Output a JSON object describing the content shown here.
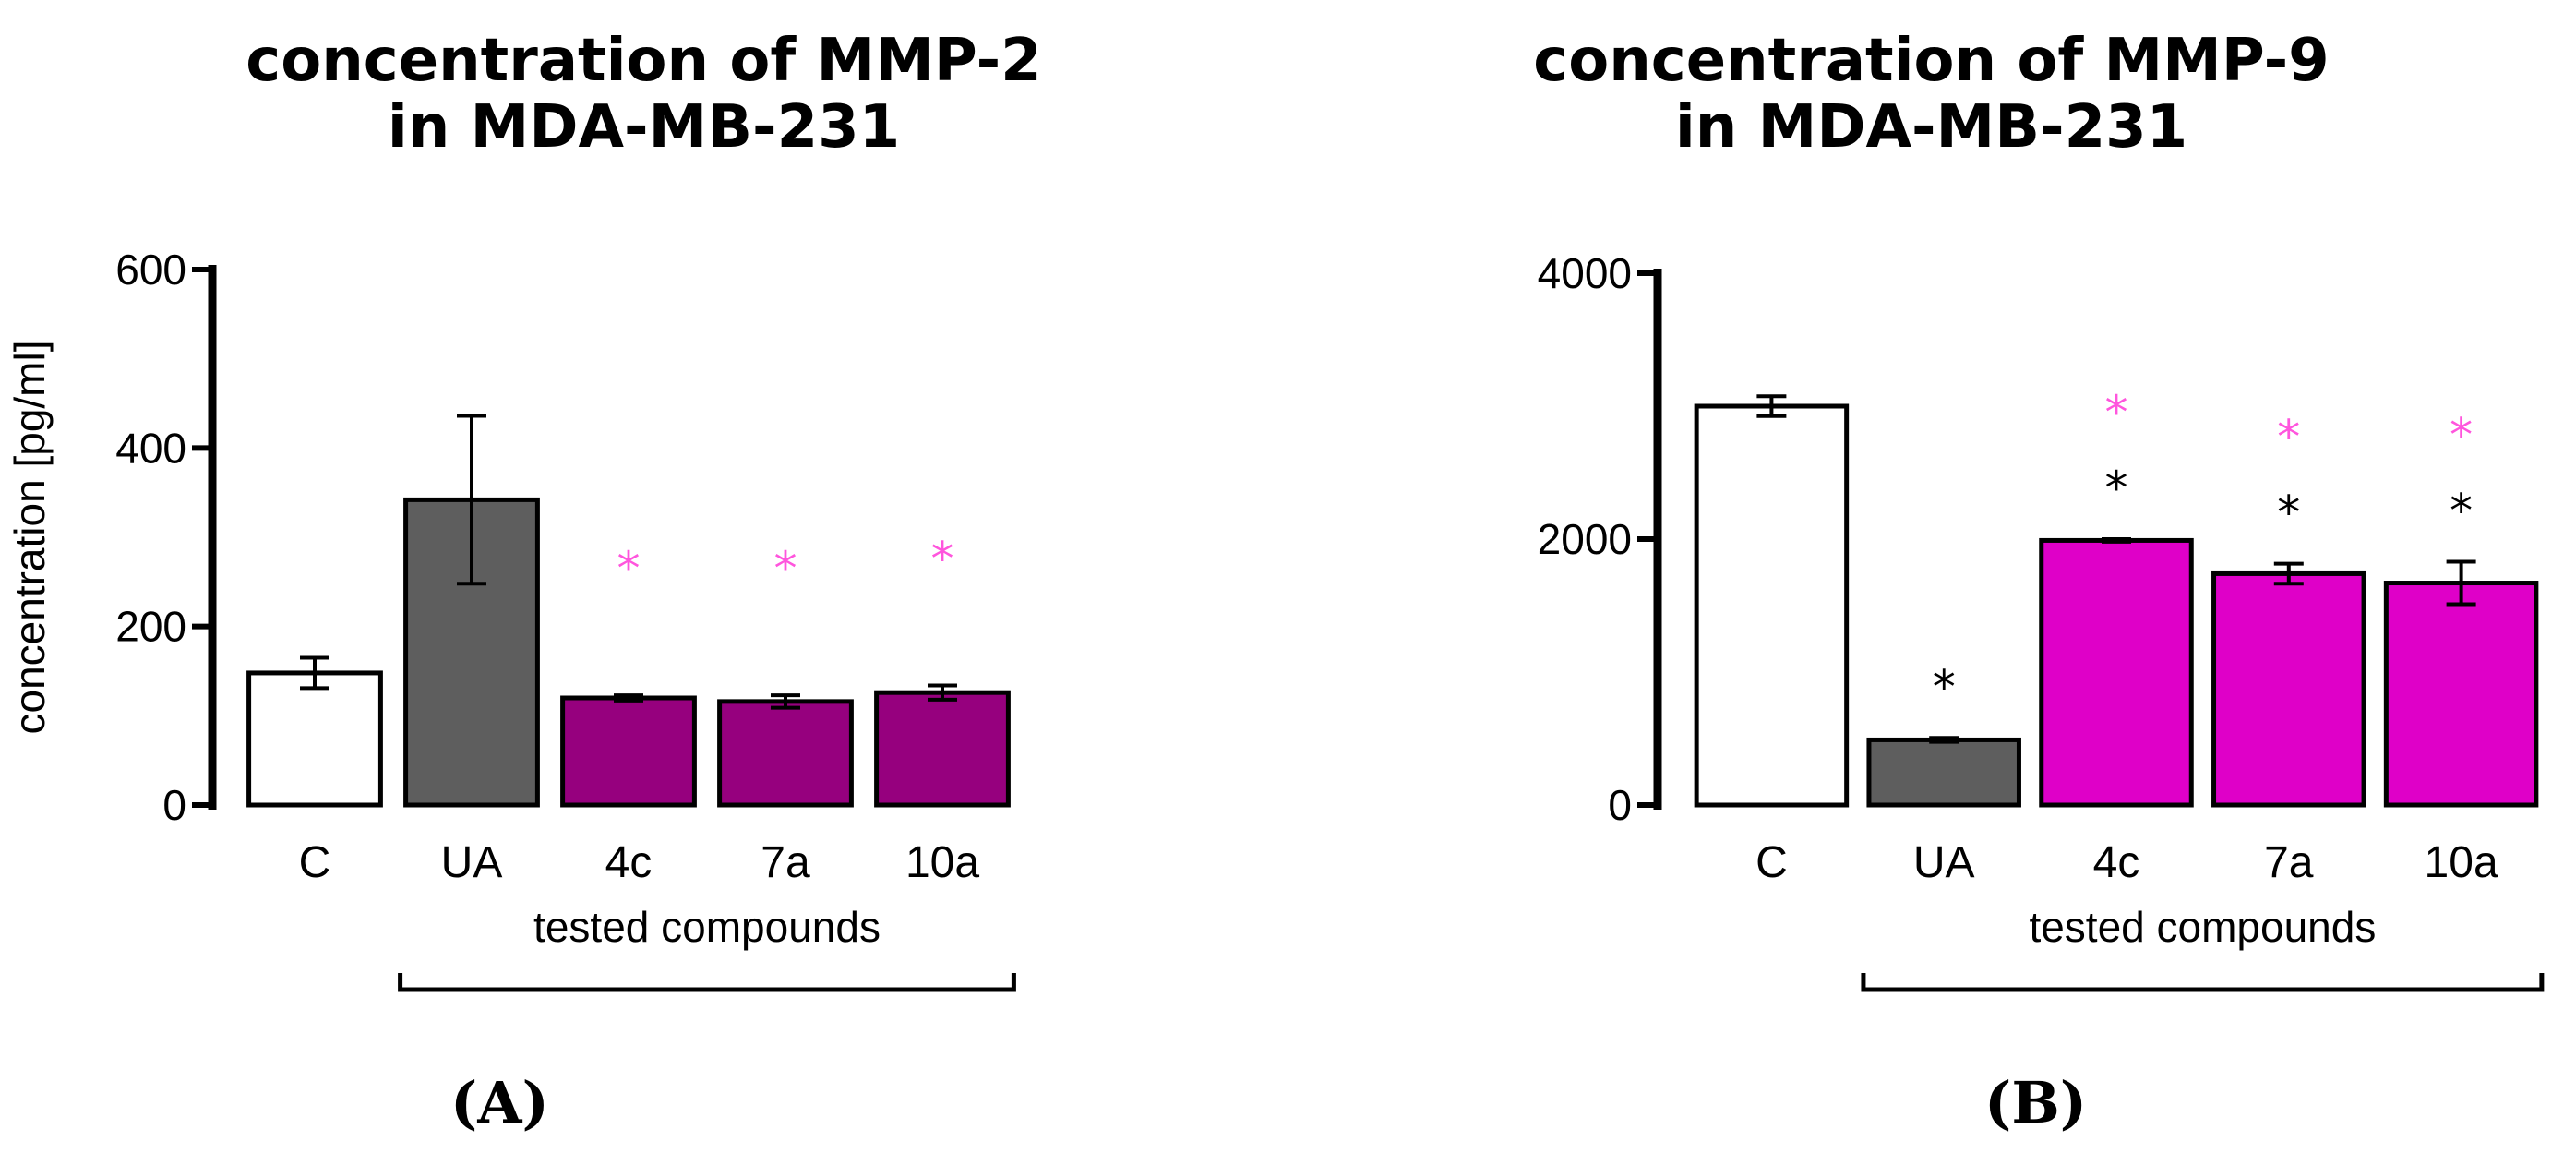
{
  "chart_data": [
    {
      "type": "bar",
      "title": [
        "concentration of MMP-2",
        "in MDA-MB-231"
      ],
      "panel_label": "(A)",
      "ylabel": "concentration [pg/ml]",
      "xlabel": "tested compounds",
      "ylim": [
        0,
        600
      ],
      "yticks": [
        "0",
        "200",
        "400",
        "600"
      ],
      "categories": [
        "C",
        "UA",
        "4c",
        "7a",
        "10a"
      ],
      "values": [
        148,
        342,
        120,
        116,
        126
      ],
      "errors": [
        17,
        94,
        3,
        7,
        8
      ],
      "bar_colors": [
        "#ffffff",
        "#5e5e5e",
        "#96007e",
        "#96007e",
        "#96007e"
      ],
      "pink_marks": [
        "",
        "",
        "*",
        "*",
        "*"
      ],
      "black_marks": [
        "",
        "",
        "",
        "",
        ""
      ],
      "bracket_from": "UA",
      "bracket_to": "10a"
    },
    {
      "type": "bar",
      "title": [
        "concentration of MMP-9",
        "in MDA-MB-231"
      ],
      "panel_label": "(B)",
      "ylabel": "concentration [pg/ml]",
      "xlabel": "tested compounds",
      "ylim": [
        0,
        4000
      ],
      "yticks": [
        "0",
        "2000",
        "4000"
      ],
      "categories": [
        "C",
        "UA",
        "4c",
        "7a",
        "10a"
      ],
      "values": [
        3000,
        490,
        1990,
        1740,
        1670
      ],
      "errors": [
        75,
        15,
        10,
        75,
        160
      ],
      "bar_colors": [
        "#ffffff",
        "#5e5e5e",
        "#df00c8",
        "#df00c8",
        "#df00c8"
      ],
      "pink_marks": [
        "",
        "",
        "*",
        "*",
        "*"
      ],
      "black_marks": [
        "",
        "*",
        "*",
        "*",
        "*"
      ],
      "bracket_from": "UA",
      "bracket_to": "10a"
    }
  ],
  "colors": {
    "pink_mark": "#ff55dd",
    "black_mark": "#000000",
    "axis": "#000000"
  }
}
